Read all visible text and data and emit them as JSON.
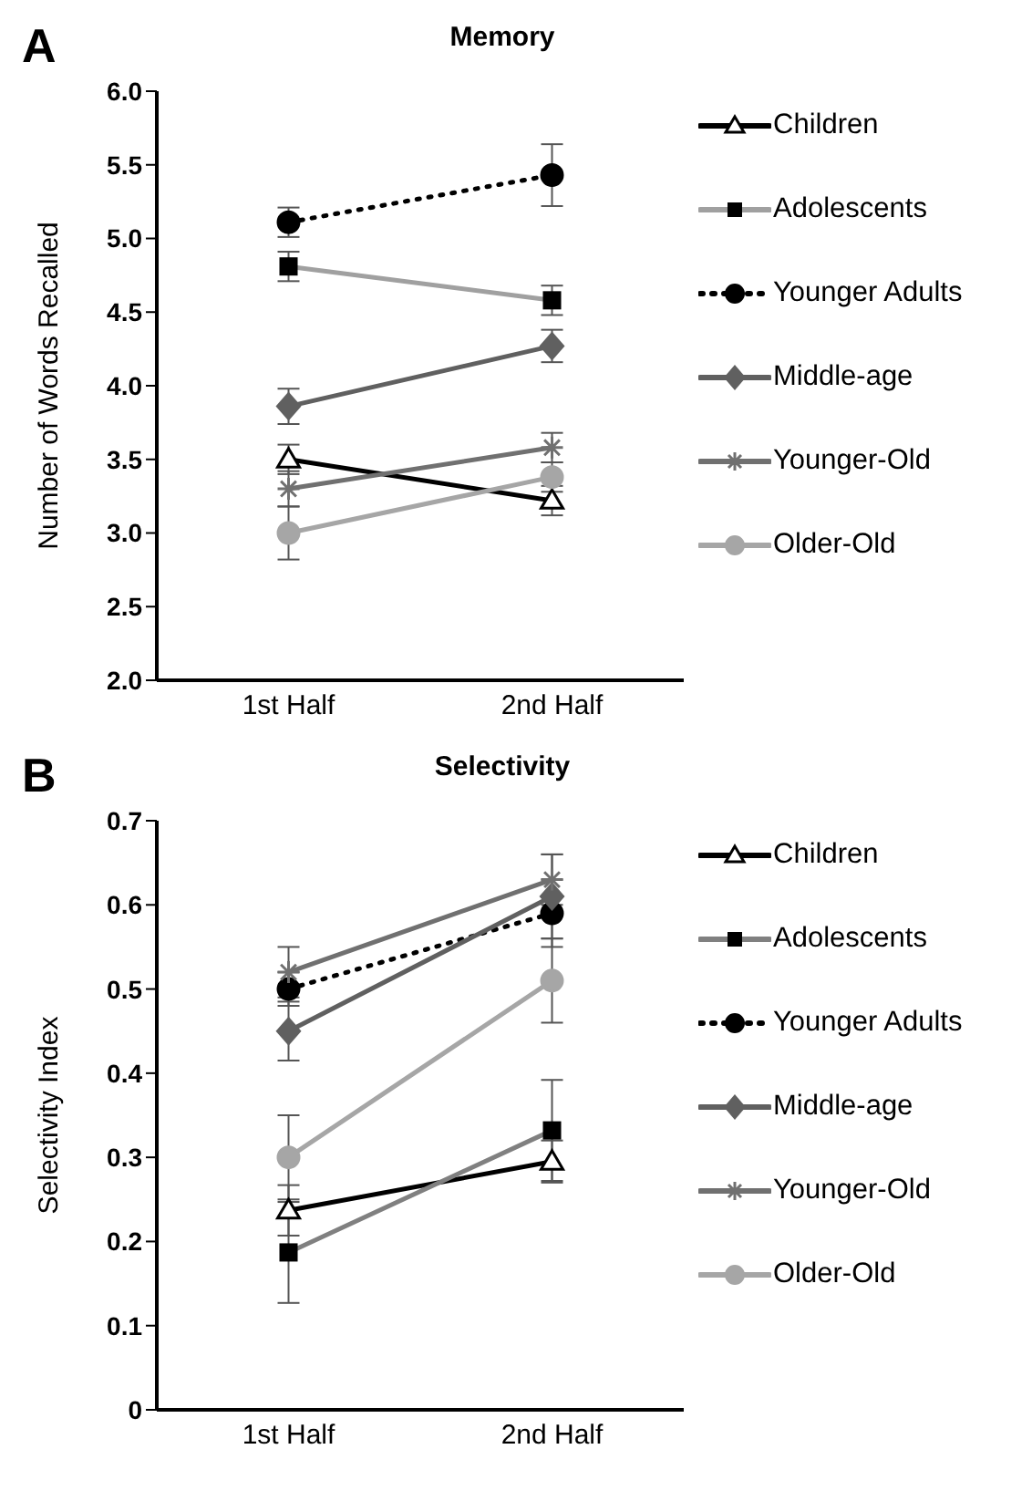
{
  "chart_data": [
    {
      "type": "line",
      "title": "Memory",
      "ylabel": "Number of Words Recalled",
      "annotations": [
        "A"
      ],
      "categories": [
        "1st Half",
        "2nd Half"
      ],
      "ylim": [
        2,
        6
      ],
      "yticks": [
        {
          "value": 2,
          "label": "2.0"
        },
        {
          "value": 2.5,
          "label": "2.5"
        },
        {
          "value": 3,
          "label": "3.0"
        },
        {
          "value": 3.5,
          "label": "3.5"
        },
        {
          "value": 4,
          "label": "4.0"
        },
        {
          "value": 4.5,
          "label": "4.5"
        },
        {
          "value": 5,
          "label": "5.0"
        },
        {
          "value": 5.5,
          "label": "5.5"
        },
        {
          "value": 6,
          "label": "6.0"
        }
      ],
      "grid": false,
      "legend": "right",
      "series": [
        {
          "name": "Children",
          "color": "#000000",
          "marker": "triangle",
          "line_style": "solid",
          "values": [
            3.5,
            3.22
          ],
          "errors": [
            0.1,
            0.1
          ]
        },
        {
          "name": "Adolescents",
          "color": "#a0a0a0",
          "marker": "square",
          "line_style": "solid",
          "values": [
            4.81,
            4.58
          ],
          "errors": [
            0.1,
            0.1
          ]
        },
        {
          "name": "Younger Adults",
          "color": "#000000",
          "marker": "circle",
          "line_style": "dotted",
          "values": [
            5.11,
            5.43
          ],
          "errors": [
            0.1,
            0.21
          ]
        },
        {
          "name": "Middle-age",
          "color": "#606060",
          "marker": "diamond",
          "line_style": "solid",
          "values": [
            3.86,
            4.27
          ],
          "errors": [
            0.12,
            0.11
          ]
        },
        {
          "name": "Younger-Old",
          "color": "#707070",
          "marker": "cross",
          "line_style": "solid",
          "values": [
            3.3,
            3.58
          ],
          "errors": [
            0.12,
            0.1
          ]
        },
        {
          "name": "Older-Old",
          "color": "#a6a6a6",
          "marker": "circle",
          "line_style": "solid",
          "values": [
            3.0,
            3.38
          ],
          "errors": [
            0.18,
            0.1
          ]
        }
      ]
    },
    {
      "type": "line",
      "title": "Selectivity",
      "ylabel": "Selectivity Index",
      "annotations": [
        "B"
      ],
      "categories": [
        "1st Half",
        "2nd Half"
      ],
      "ylim": [
        0,
        0.7
      ],
      "yticks": [
        0,
        0.1,
        0.2,
        0.3,
        0.4,
        0.5,
        0.6,
        0.7
      ],
      "grid": false,
      "legend": "right",
      "series": [
        {
          "name": "Children",
          "color": "#000000",
          "marker": "triangle",
          "line_style": "solid",
          "values": [
            0.237,
            0.295
          ],
          "errors": [
            0.03,
            0.025
          ]
        },
        {
          "name": "Adolescents",
          "color": "#808080",
          "marker": "square",
          "line_style": "solid",
          "values": [
            0.187,
            0.332
          ],
          "errors": [
            0.06,
            0.06
          ]
        },
        {
          "name": "Younger Adults",
          "color": "#000000",
          "marker": "circle",
          "line_style": "dotted",
          "values": [
            0.5,
            0.59
          ],
          "errors": [
            0.02,
            0.04
          ]
        },
        {
          "name": "Middle-age",
          "color": "#606060",
          "marker": "diamond",
          "line_style": "solid",
          "values": [
            0.45,
            0.61
          ],
          "errors": [
            0.035,
            0.05
          ]
        },
        {
          "name": "Younger-Old",
          "color": "#707070",
          "marker": "cross",
          "line_style": "solid",
          "values": [
            0.52,
            0.63
          ],
          "errors": [
            0.03,
            0.03
          ]
        },
        {
          "name": "Older-Old",
          "color": "#a6a6a6",
          "marker": "circle",
          "line_style": "solid",
          "values": [
            0.3,
            0.51
          ],
          "errors": [
            0.05,
            0.05
          ]
        }
      ]
    }
  ]
}
